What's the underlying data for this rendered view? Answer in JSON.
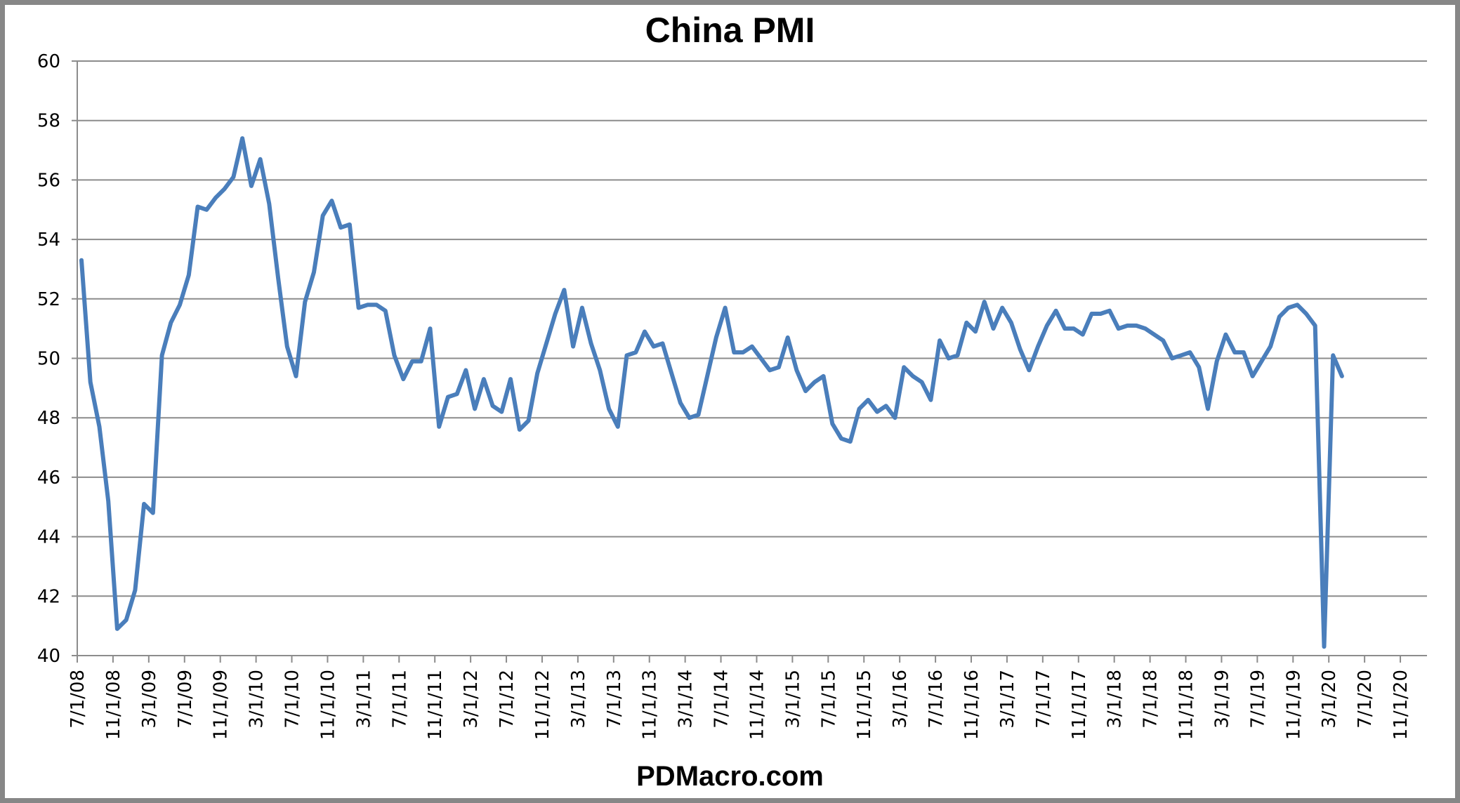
{
  "chart_data": {
    "type": "line",
    "title": "China PMI",
    "source_label": "PDMacro.com",
    "xlabel": "",
    "ylabel": "",
    "ylim": [
      40,
      60
    ],
    "y_ticks": [
      40,
      42,
      44,
      46,
      48,
      50,
      52,
      54,
      56,
      58,
      60
    ],
    "x_tick_labels": [
      "7/1/08",
      "11/1/08",
      "3/1/09",
      "7/1/09",
      "11/1/09",
      "3/1/10",
      "7/1/10",
      "11/1/10",
      "3/1/11",
      "7/1/11",
      "11/1/11",
      "3/1/12",
      "7/1/12",
      "11/1/12",
      "3/1/13",
      "7/1/13",
      "11/1/13",
      "3/1/14",
      "7/1/14",
      "11/1/14",
      "3/1/15",
      "7/1/15",
      "11/1/15",
      "3/1/16",
      "7/1/16",
      "11/1/16",
      "3/1/17",
      "7/1/17",
      "11/1/17",
      "3/1/18",
      "7/1/18",
      "11/1/18",
      "3/1/19",
      "7/1/19",
      "11/1/19",
      "3/1/20",
      "7/1/20",
      "11/1/20"
    ],
    "grid": true,
    "legend": "none",
    "x_start": "2008-07",
    "x_frequency": "monthly",
    "line_color": "#4A7EBB",
    "series": [
      {
        "name": "China PMI",
        "values": [
          53.3,
          49.2,
          47.7,
          45.2,
          40.9,
          41.2,
          42.2,
          45.1,
          44.8,
          50.1,
          51.2,
          51.8,
          52.8,
          55.1,
          55.0,
          55.4,
          55.7,
          56.1,
          57.4,
          55.8,
          56.7,
          55.2,
          52.7,
          50.4,
          49.4,
          51.9,
          52.9,
          54.8,
          55.3,
          54.4,
          54.5,
          51.7,
          51.8,
          51.8,
          51.6,
          50.1,
          49.3,
          49.9,
          49.9,
          51.0,
          47.7,
          48.7,
          48.8,
          49.6,
          48.3,
          49.3,
          48.4,
          48.2,
          49.3,
          47.6,
          47.9,
          49.5,
          50.5,
          51.5,
          52.3,
          50.4,
          51.7,
          50.5,
          49.6,
          48.3,
          47.7,
          50.1,
          50.2,
          50.9,
          50.4,
          50.5,
          49.5,
          48.5,
          48.0,
          48.1,
          49.4,
          50.7,
          51.7,
          50.2,
          50.2,
          50.4,
          50.0,
          49.6,
          49.7,
          50.7,
          49.6,
          48.9,
          49.2,
          49.4,
          47.8,
          47.3,
          47.2,
          48.3,
          48.6,
          48.2,
          48.4,
          48.0,
          49.7,
          49.4,
          49.2,
          48.6,
          50.6,
          50.0,
          50.1,
          51.2,
          50.9,
          51.9,
          51.0,
          51.7,
          51.2,
          50.3,
          49.6,
          50.4,
          51.1,
          51.6,
          51.0,
          51.0,
          50.8,
          51.5,
          51.5,
          51.6,
          51.0,
          51.1,
          51.1,
          51.0,
          50.8,
          50.6,
          50.0,
          50.1,
          50.2,
          49.7,
          48.3,
          49.9,
          50.8,
          50.2,
          50.2,
          49.4,
          49.9,
          50.4,
          51.4,
          51.7,
          51.8,
          51.5,
          51.1,
          40.3,
          50.1,
          49.4
        ]
      }
    ]
  },
  "colors": {
    "frame_border": "#878787",
    "gridline": "#8C8C8C",
    "axis": "#8C8C8C",
    "line": "#4A7EBB",
    "text": "#000000"
  }
}
